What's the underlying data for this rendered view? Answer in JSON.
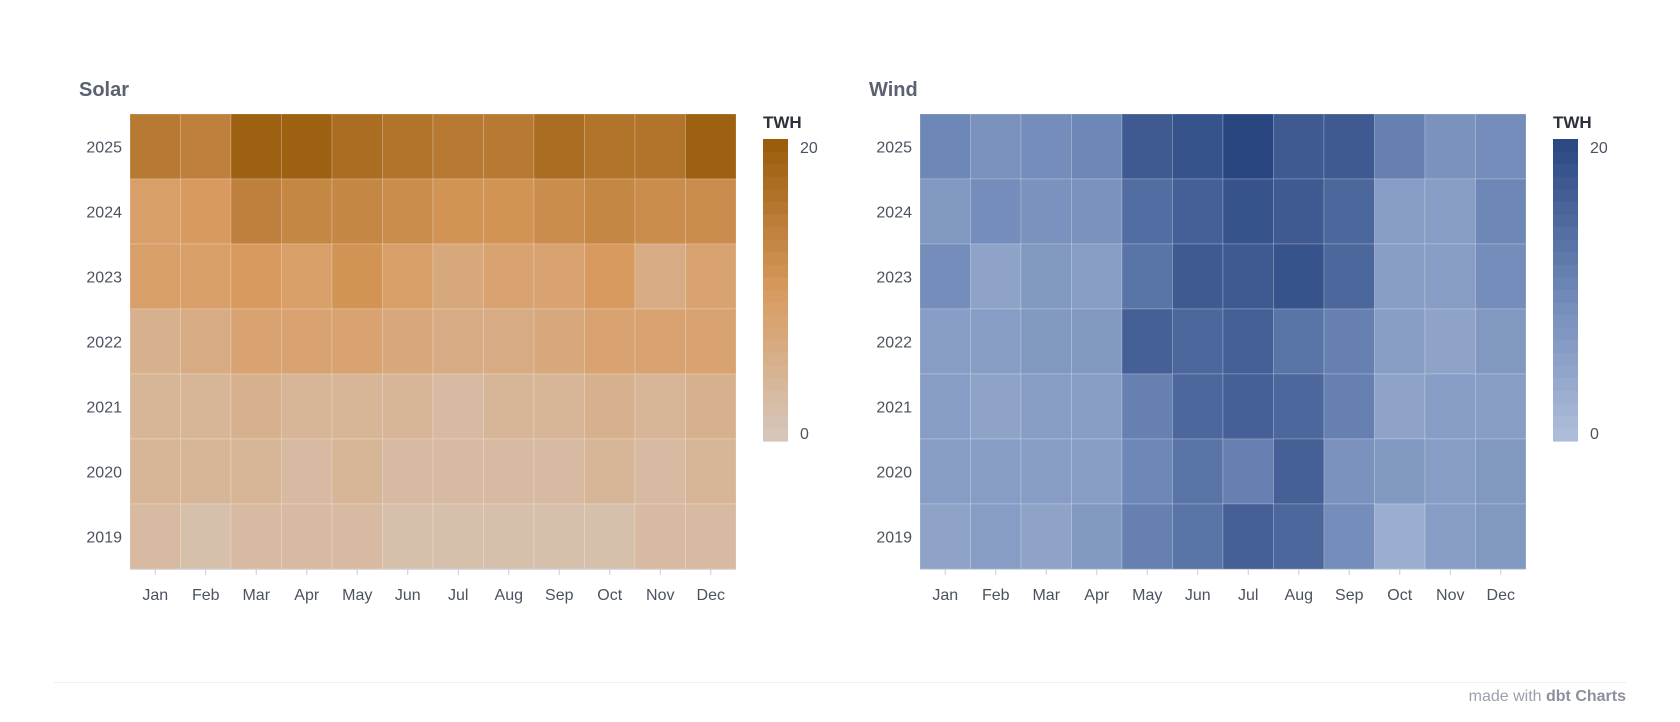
{
  "footer": {
    "prefix": "made with",
    "brand": "dbt Charts"
  },
  "chart_data": [
    {
      "type": "heatmap",
      "title": "Solar",
      "legend_title": "TWH",
      "legend_placement": "right",
      "x_categories": [
        "Jan",
        "Feb",
        "Mar",
        "Apr",
        "May",
        "Jun",
        "Jul",
        "Aug",
        "Sep",
        "Oct",
        "Nov",
        "Dec"
      ],
      "y_categories": [
        "2025",
        "2024",
        "2023",
        "2022",
        "2021",
        "2020",
        "2019"
      ],
      "zlim": [
        0,
        20
      ],
      "legend_ticks": [
        "20",
        "0"
      ],
      "color_low": "#d6c8be",
      "color_mid": "#d89a5e",
      "color_high": "#985a08",
      "values": [
        [
          15,
          14,
          19,
          19,
          17,
          16,
          15,
          15,
          17,
          16,
          16,
          19
        ],
        [
          9,
          10,
          14,
          13,
          13,
          12,
          11,
          11,
          12,
          13,
          12,
          12
        ],
        [
          9,
          9,
          10,
          9,
          11,
          9,
          7,
          8,
          8,
          10,
          6,
          8
        ],
        [
          5,
          6,
          8,
          8,
          8,
          7,
          6,
          6,
          7,
          8,
          8,
          8
        ],
        [
          4,
          4,
          5,
          4,
          4,
          4,
          3,
          4,
          4,
          5,
          4,
          5
        ],
        [
          4,
          4,
          4,
          3,
          4,
          3,
          3,
          3,
          3,
          4,
          3,
          4
        ],
        [
          3,
          2,
          3,
          3,
          3,
          2,
          2,
          2,
          2,
          2,
          3,
          3
        ]
      ]
    },
    {
      "type": "heatmap",
      "title": "Wind",
      "legend_title": "TWH",
      "legend_placement": "right",
      "x_categories": [
        "Jan",
        "Feb",
        "Mar",
        "Apr",
        "May",
        "Jun",
        "Jul",
        "Aug",
        "Sep",
        "Oct",
        "Nov",
        "Dec"
      ],
      "y_categories": [
        "2025",
        "2024",
        "2023",
        "2022",
        "2021",
        "2020",
        "2019"
      ],
      "zlim": [
        0,
        20
      ],
      "legend_ticks": [
        "20",
        "0"
      ],
      "color_low": "#b0bfdb",
      "color_mid": "#6d87b6",
      "color_high": "#2a4681",
      "values": [
        [
          10,
          8,
          9,
          10,
          17,
          18,
          20,
          17,
          17,
          11,
          8,
          9
        ],
        [
          7,
          9,
          8,
          8,
          14,
          16,
          18,
          17,
          15,
          6,
          6,
          10
        ],
        [
          9,
          5,
          7,
          6,
          13,
          17,
          17,
          18,
          15,
          6,
          6,
          9
        ],
        [
          6,
          6,
          7,
          7,
          16,
          15,
          16,
          13,
          11,
          6,
          5,
          7
        ],
        [
          6,
          5,
          6,
          6,
          11,
          15,
          16,
          15,
          11,
          5,
          6,
          6
        ],
        [
          6,
          6,
          6,
          6,
          10,
          13,
          11,
          16,
          8,
          7,
          6,
          7
        ],
        [
          5,
          6,
          5,
          7,
          11,
          13,
          16,
          15,
          9,
          3,
          6,
          7
        ]
      ]
    }
  ]
}
